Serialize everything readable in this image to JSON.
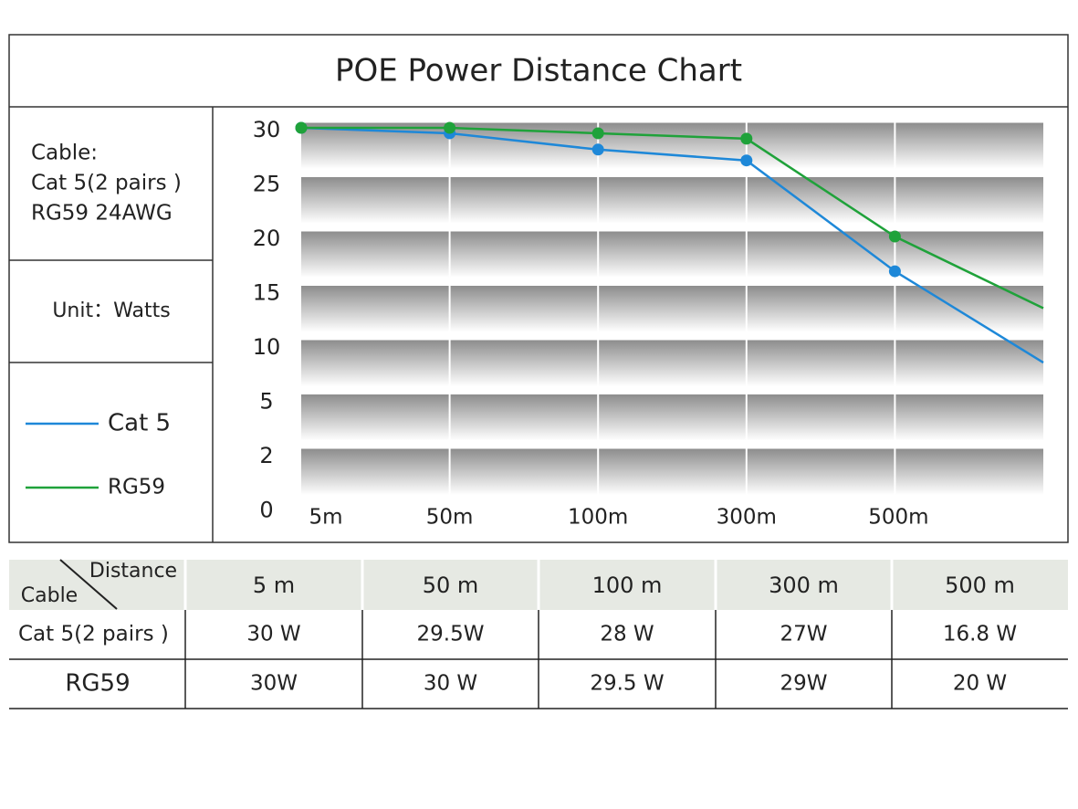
{
  "chart_data": {
    "type": "line",
    "title": "POE  Power Distance Chart",
    "categories": [
      "5m",
      "50m",
      "100m",
      "300m",
      "500m",
      null
    ],
    "series": [
      {
        "name": "Cat 5",
        "color": "#1e88d8",
        "values": [
          30,
          29.5,
          28,
          27,
          16.8,
          8.4
        ]
      },
      {
        "name": "RG59",
        "color": "#1fa23a",
        "values": [
          30,
          30,
          29.5,
          29,
          20,
          13.4
        ]
      }
    ],
    "ylim": [
      0,
      30
    ],
    "yticks": [
      30,
      25,
      20,
      15,
      10,
      5,
      2,
      0
    ],
    "grid": true
  },
  "info": {
    "cable_label": "Cable:",
    "cable_types": [
      "Cat 5(2 pairs )",
      "RG59  24AWG"
    ],
    "unit": "Unit：Watts"
  },
  "table": {
    "corner_top": "Distance",
    "corner_bottom": "Cable",
    "header": [
      "5 m",
      "50 m",
      "100 m",
      "300 m",
      "500 m"
    ],
    "rows": [
      [
        "Cat 5(2 pairs )",
        "30 W",
        "29.5W",
        "28 W",
        "27W",
        "16.8 W"
      ],
      [
        "RG59",
        "30W",
        "30 W",
        "29.5 W",
        "29W",
        "20 W"
      ]
    ]
  }
}
